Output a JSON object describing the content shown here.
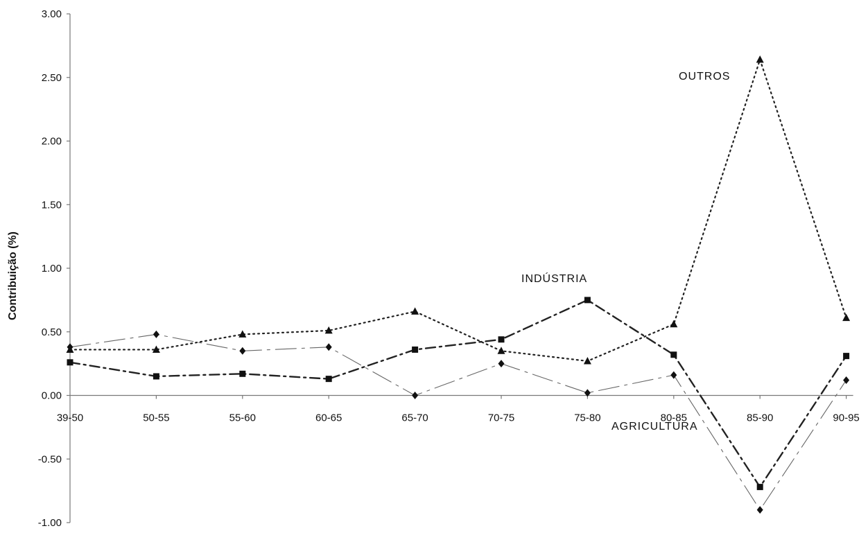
{
  "chart_data": {
    "type": "line",
    "ylabel": "Contribuição (%)",
    "categories": [
      "39-50",
      "50-55",
      "55-60",
      "60-65",
      "65-70",
      "70-75",
      "75-80",
      "80-85",
      "85-90",
      "90-95"
    ],
    "ylim": [
      -1.0,
      3.0
    ],
    "yticks": [
      "3.00",
      "2.50",
      "2.00",
      "1.50",
      "1.00",
      "0.50",
      "0.00",
      "-0.50",
      "-1.00"
    ],
    "grid": false,
    "legend": "none",
    "series": [
      {
        "name": "OUTROS",
        "marker": "triangle",
        "line_style": "dotted",
        "values": [
          0.36,
          0.36,
          0.48,
          0.51,
          0.66,
          0.35,
          0.27,
          0.56,
          2.64,
          0.61
        ]
      },
      {
        "name": "INDÚSTRIA",
        "marker": "square",
        "line_style": "dash-dot",
        "values": [
          0.26,
          0.15,
          0.17,
          0.13,
          0.36,
          0.44,
          0.75,
          0.32,
          -0.72,
          0.31
        ]
      },
      {
        "name": "AGRICULTURA",
        "marker": "diamond",
        "line_style": "thin-dash-dot",
        "values": [
          0.38,
          0.48,
          0.35,
          0.38,
          0.0,
          0.25,
          0.02,
          0.16,
          -0.9,
          0.12
        ]
      }
    ]
  }
}
